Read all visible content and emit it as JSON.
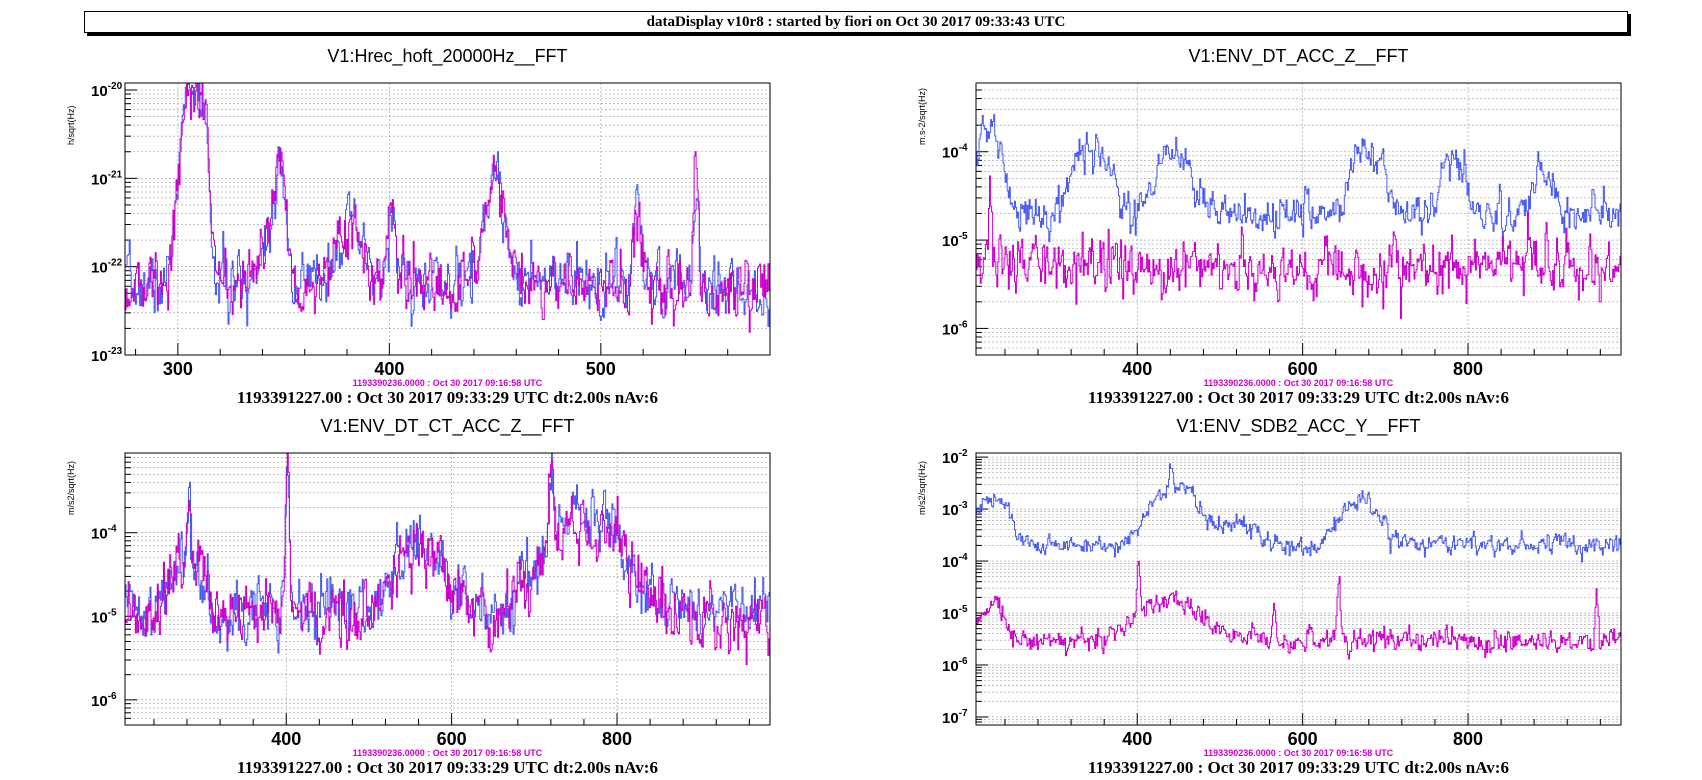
{
  "header": "dataDisplay v10r8 : started by fiori on Oct 30 2017 09:33:43 UTC",
  "colors": {
    "current": "#4a5cf0",
    "reference": "#cc00cc",
    "grid": "#9a9a9a",
    "axis": "#000000"
  },
  "chart_data": [
    {
      "type": "line",
      "title": "V1:Hrec_hoft_20000Hz__FFT",
      "ylabel": "h/sqrt(Hz)",
      "xlabel": "",
      "yscale": "log",
      "xlim": [
        275,
        580
      ],
      "ylim": [
        1e-23,
        1.2e-20
      ],
      "xticks": [
        300,
        400,
        500
      ],
      "yticks": [
        {
          "exp": "-20",
          "value": 1e-20
        },
        {
          "exp": "-21",
          "value": 1e-21
        },
        {
          "exp": "-22",
          "value": 1e-22
        },
        {
          "exp": "-23",
          "value": 1e-23
        }
      ],
      "grid": true,
      "baseline": 6e-23,
      "peaks": [
        [
          305,
          7e-21,
          4
        ],
        [
          310,
          9e-21,
          3
        ],
        [
          348,
          2e-21,
          2
        ],
        [
          401,
          4e-22,
          2
        ],
        [
          450,
          1e-21,
          2
        ],
        [
          545,
          1.2e-21,
          1
        ],
        [
          517,
          3e-22,
          2
        ]
      ],
      "bumps": [
        [
          345,
          2.5e-22,
          6
        ],
        [
          380,
          2e-22,
          8
        ],
        [
          450,
          5e-22,
          6
        ]
      ],
      "noise": 0.55,
      "series": [
        {
          "key": "current",
          "seed": 7
        },
        {
          "key": "reference",
          "seed": 13
        }
      ],
      "reference_stamp": "1193390236.0000 : Oct 30 2017 09:16:58 UTC",
      "footer": "1193391227.00 : Oct 30 2017 09:33:29 UTC dt:2.00s nAv:6"
    },
    {
      "type": "line",
      "title": "V1:ENV_DT_ACC_Z__FFT",
      "ylabel": "m.s-2/sqrt(Hz)",
      "xlabel": "",
      "yscale": "log",
      "xlim": [
        205,
        985
      ],
      "ylim": [
        5e-07,
        0.0006
      ],
      "xticks": [
        400,
        600,
        800
      ],
      "yticks": [
        {
          "exp": "-4",
          "value": 0.0001
        },
        {
          "exp": "-5",
          "value": 1e-05
        },
        {
          "exp": "-6",
          "value": 1e-06
        }
      ],
      "grid": true,
      "series": [
        {
          "key": "current",
          "seed": 21,
          "baseline": 2e-05,
          "noise": 0.35,
          "bumps": [
            [
              220,
              0.00018,
              15
            ],
            [
              345,
              9e-05,
              25
            ],
            [
              445,
              9e-05,
              20
            ],
            [
              680,
              0.0001,
              20
            ],
            [
              780,
              7e-05,
              15
            ],
            [
              890,
              4e-05,
              15
            ]
          ],
          "peaks": []
        },
        {
          "key": "reference",
          "seed": 33,
          "baseline": 5e-06,
          "noise": 0.5,
          "bumps": [],
          "peaks": [
            [
              222,
              4e-05,
              2
            ],
            [
              300,
              2e-06,
              5
            ],
            [
              775,
              1.5e-06,
              3
            ]
          ]
        }
      ],
      "reference_stamp": "1193390236.0000 : Oct 30 2017 09:16:58 UTC",
      "footer": "1193391227.00 : Oct 30 2017 09:33:29 UTC dt:2.00s nAv:6"
    },
    {
      "type": "line",
      "title": "V1:ENV_DT_CT_ACC_Z__FFT",
      "ylabel": "m/s2/sqrt(Hz)",
      "xlabel": "",
      "yscale": "log",
      "xlim": [
        205,
        985
      ],
      "ylim": [
        5e-07,
        0.0009
      ],
      "xticks": [
        400,
        600,
        800
      ],
      "yticks": [
        {
          "exp": "-4",
          "value": 0.0001
        },
        {
          "exp": "-5",
          "value": 1e-05
        },
        {
          "exp": "-6",
          "value": 1e-06
        }
      ],
      "grid": true,
      "series": [
        {
          "key": "current",
          "seed": 41,
          "baseline": 1.2e-05,
          "noise": 0.6,
          "bumps": [
            [
              280,
              4e-05,
              20
            ],
            [
              560,
              6e-05,
              30
            ],
            [
              760,
              0.00014,
              50
            ]
          ],
          "peaks": [
            [
              401,
              0.0006,
              2
            ],
            [
              282,
              0.0002,
              2
            ],
            [
              720,
              0.0003,
              3
            ]
          ]
        },
        {
          "key": "reference",
          "seed": 55,
          "baseline": 1e-05,
          "noise": 0.6,
          "bumps": [
            [
              280,
              4e-05,
              20
            ],
            [
              560,
              6e-05,
              30
            ],
            [
              760,
              0.00013,
              50
            ]
          ],
          "peaks": [
            [
              401,
              0.0006,
              2
            ],
            [
              282,
              0.0002,
              2
            ],
            [
              720,
              0.00035,
              3
            ]
          ]
        }
      ],
      "reference_stamp": "1193390236.0000 : Oct 30 2017 09:16:58 UTC",
      "footer": "1193391227.00 : Oct 30 2017 09:33:29 UTC dt:2.00s nAv:6"
    },
    {
      "type": "line",
      "title": "V1:ENV_SDB2_ACC_Y__FFT",
      "ylabel": "m/s2/sqrt(Hz)",
      "xlabel": "",
      "yscale": "log",
      "xlim": [
        205,
        985
      ],
      "ylim": [
        7e-08,
        0.012
      ],
      "xticks": [
        400,
        600,
        800
      ],
      "yticks": [
        {
          "exp": "-2",
          "value": 0.01
        },
        {
          "exp": "-3",
          "value": 0.001
        },
        {
          "exp": "-4",
          "value": 0.0001
        },
        {
          "exp": "-5",
          "value": 1e-05
        },
        {
          "exp": "-6",
          "value": 1e-06
        },
        {
          "exp": "-7",
          "value": 1e-07
        }
      ],
      "grid": true,
      "series": [
        {
          "key": "current",
          "seed": 61,
          "baseline": 0.0002,
          "noise": 0.3,
          "bumps": [
            [
              225,
              0.0015,
              20
            ],
            [
              445,
              0.0025,
              30
            ],
            [
              670,
              0.0013,
              25
            ],
            [
              520,
              0.0005,
              20
            ]
          ],
          "peaks": [
            [
              440,
              0.003,
              3
            ]
          ]
        },
        {
          "key": "reference",
          "seed": 73,
          "baseline": 3e-06,
          "noise": 0.35,
          "bumps": [
            [
              225,
              1.5e-05,
              15
            ],
            [
              440,
              1.5e-05,
              40
            ]
          ],
          "peaks": [
            [
              401,
              0.0001,
              2
            ],
            [
              643,
              5e-05,
              2
            ],
            [
              955,
              2e-05,
              2
            ],
            [
              565,
              1.5e-05,
              2
            ]
          ]
        }
      ],
      "reference_stamp": "1193390236.0000 : Oct 30 2017 09:16:58 UTC",
      "footer": "1193391227.00 : Oct 30 2017 09:33:29 UTC dt:2.00s nAv:6"
    }
  ]
}
